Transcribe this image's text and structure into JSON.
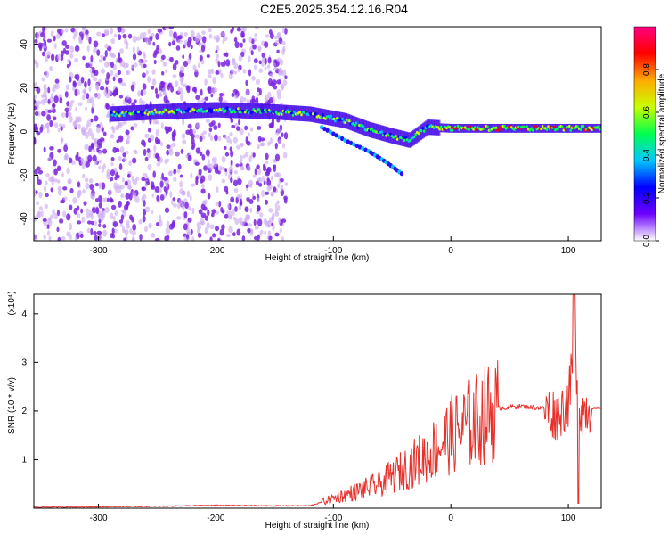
{
  "title": "C2E5.2025.354.12.16.R04",
  "colors": {
    "snr_line": "#e8302a",
    "dots": "#7a22e0",
    "dots_light": "#c9a6f0"
  },
  "chart_data": [
    {
      "type": "heatmap",
      "xlabel": "Height of straight line (km)",
      "ylabel": "Frequency (Hz)",
      "xlim": [
        -355,
        128
      ],
      "ylim": [
        -50,
        48
      ],
      "x_ticks": [
        -300,
        -200,
        -100,
        0,
        100
      ],
      "y_ticks": [
        -40,
        -20,
        0,
        20,
        40
      ],
      "colorbar": {
        "label": "Normalized spectral amplitude",
        "range": [
          0,
          1
        ],
        "ticks": [
          "0.0",
          "0.2",
          "0.4",
          "0.6",
          "0.8"
        ],
        "tick_values": [
          0.0,
          0.2,
          0.4,
          0.6,
          0.8
        ],
        "colormap": [
          "#ffffff",
          "#6e00ff",
          "#0000ff",
          "#00c8ff",
          "#00ff50",
          "#c8ff00",
          "#ffaa00",
          "#ff0000",
          "#ff0080"
        ]
      },
      "signal_track": [
        {
          "x": -290,
          "freq": 8
        },
        {
          "x": -250,
          "freq": 9
        },
        {
          "x": -200,
          "freq": 10
        },
        {
          "x": -150,
          "freq": 9
        },
        {
          "x": -120,
          "freq": 8
        },
        {
          "x": -90,
          "freq": 5
        },
        {
          "x": -70,
          "freq": 1
        },
        {
          "x": -50,
          "freq": -2
        },
        {
          "x": -35,
          "freq": -4
        },
        {
          "x": -20,
          "freq": 2
        },
        {
          "x": 0,
          "freq": 1.5
        },
        {
          "x": 50,
          "freq": 1.5
        },
        {
          "x": 100,
          "freq": 1.5
        },
        {
          "x": 128,
          "freq": 1.5
        }
      ],
      "secondary_track": [
        {
          "x": -110,
          "freq": 2
        },
        {
          "x": -90,
          "freq": -4
        },
        {
          "x": -70,
          "freq": -9
        },
        {
          "x": -55,
          "freq": -14
        },
        {
          "x": -40,
          "freq": -20
        }
      ]
    },
    {
      "type": "line",
      "xlabel": "Height of straight line (km)",
      "ylabel": "SNR (10 * v/v)",
      "y_multiplier": "(x10⁴)",
      "xlim": [
        -355,
        128
      ],
      "ylim": [
        0,
        4.4
      ],
      "x_ticks": [
        -300,
        -200,
        -100,
        0,
        100
      ],
      "y_ticks": [
        1,
        2,
        3,
        4
      ],
      "series": [
        {
          "values_note_free": true,
          "x": [
            -355,
            -300,
            -250,
            -200,
            -150,
            -120,
            -100,
            -80,
            -60,
            -40,
            -20,
            -10,
            0,
            20,
            40,
            60,
            80,
            90,
            100,
            105,
            110,
            115,
            128
          ],
          "y": [
            0.02,
            0.03,
            0.04,
            0.06,
            0.05,
            0.05,
            0.2,
            0.35,
            0.5,
            0.8,
            1.1,
            1.3,
            1.5,
            1.8,
            2.05,
            2.1,
            2.05,
            1.9,
            2.2,
            3.2,
            2.0,
            2.05,
            2.05
          ]
        }
      ]
    }
  ]
}
